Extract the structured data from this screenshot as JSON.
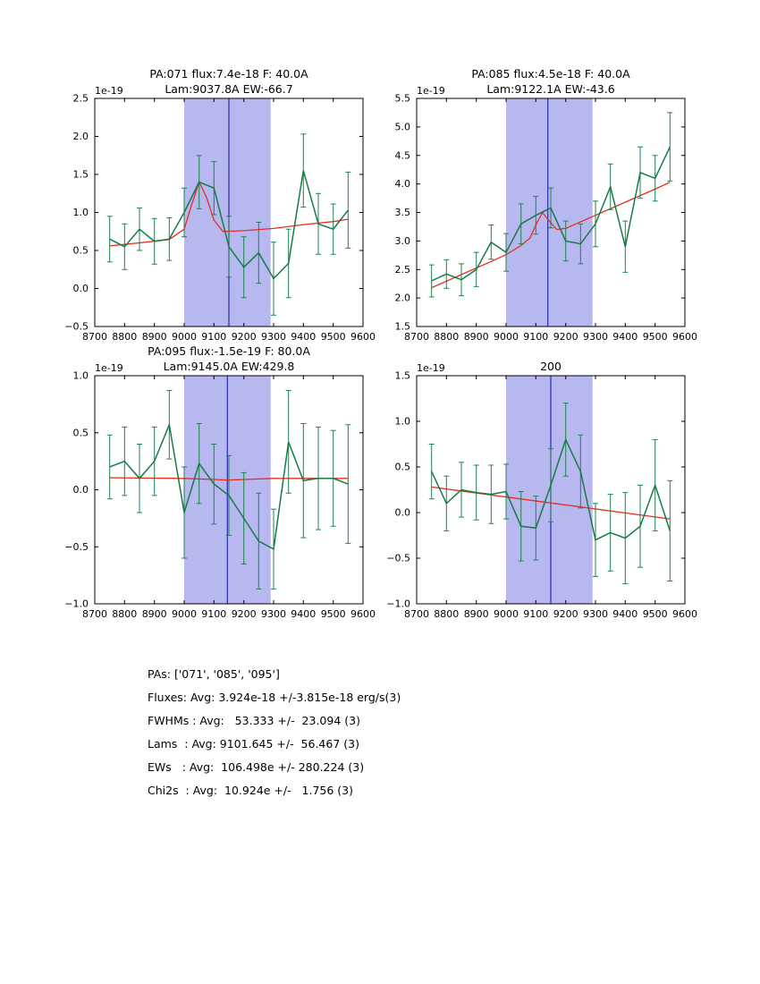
{
  "figure": {
    "background": "#ffffff",
    "colors": {
      "data_line": "#167a48",
      "error_bar": "#1f8150",
      "fit_line": "#e62e1e",
      "band": "#b8b8f0",
      "center_line": "#2929b0",
      "axis": "#000000",
      "text": "#000000"
    }
  },
  "chart_data": [
    {
      "type": "line",
      "title_lines": [
        "PA:071 flux:7.4e-18 F: 40.0A",
        "Lam:9037.8A EW:-66.7"
      ],
      "offset_label": "1e-19",
      "xlim": [
        8700,
        9600
      ],
      "ylim": [
        -0.5,
        2.5
      ],
      "xticks": [
        8700,
        8800,
        8900,
        9000,
        9100,
        9200,
        9300,
        9400,
        9500,
        9600
      ],
      "yticks": [
        -0.5,
        0.0,
        0.5,
        1.0,
        1.5,
        2.0,
        2.5
      ],
      "band": [
        9000,
        9290
      ],
      "vline": 9150,
      "grid": false,
      "x": [
        8750,
        8800,
        8850,
        8900,
        8950,
        9000,
        9050,
        9100,
        9150,
        9200,
        9250,
        9300,
        9350,
        9400,
        9450,
        9500,
        9550
      ],
      "y": [
        0.65,
        0.55,
        0.78,
        0.62,
        0.65,
        1.0,
        1.4,
        1.32,
        0.55,
        0.28,
        0.47,
        0.13,
        0.33,
        1.55,
        0.85,
        0.78,
        1.03
      ],
      "yerr": [
        0.3,
        0.3,
        0.28,
        0.3,
        0.28,
        0.32,
        0.35,
        0.35,
        0.4,
        0.4,
        0.4,
        0.48,
        0.45,
        0.48,
        0.4,
        0.33,
        0.5
      ],
      "fit": [
        [
          8750,
          0.56
        ],
        [
          8850,
          0.6
        ],
        [
          8950,
          0.645
        ],
        [
          9000,
          0.78
        ],
        [
          9025,
          1.1
        ],
        [
          9050,
          1.4
        ],
        [
          9075,
          1.2
        ],
        [
          9100,
          0.9
        ],
        [
          9130,
          0.75
        ],
        [
          9200,
          0.76
        ],
        [
          9300,
          0.79
        ],
        [
          9400,
          0.84
        ],
        [
          9500,
          0.88
        ],
        [
          9550,
          0.91
        ]
      ]
    },
    {
      "type": "line",
      "title_lines": [
        "PA:085 flux:4.5e-18 F: 40.0A",
        "Lam:9122.1A EW:-43.6"
      ],
      "offset_label": "1e-19",
      "xlim": [
        8700,
        9600
      ],
      "ylim": [
        1.5,
        5.5
      ],
      "xticks": [
        8700,
        8800,
        8900,
        9000,
        9100,
        9200,
        9300,
        9400,
        9500,
        9600
      ],
      "yticks": [
        1.5,
        2.0,
        2.5,
        3.0,
        3.5,
        4.0,
        4.5,
        5.0,
        5.5
      ],
      "band": [
        9000,
        9290
      ],
      "vline": 9140,
      "grid": false,
      "x": [
        8750,
        8800,
        8850,
        8900,
        8950,
        9000,
        9050,
        9100,
        9150,
        9200,
        9250,
        9300,
        9350,
        9400,
        9450,
        9500,
        9550
      ],
      "y": [
        2.3,
        2.42,
        2.32,
        2.5,
        2.98,
        2.8,
        3.3,
        3.45,
        3.58,
        3.0,
        2.95,
        3.3,
        3.95,
        2.9,
        4.2,
        4.1,
        4.65
      ],
      "yerr": [
        0.28,
        0.25,
        0.28,
        0.3,
        0.3,
        0.33,
        0.35,
        0.33,
        0.35,
        0.35,
        0.35,
        0.4,
        0.4,
        0.45,
        0.45,
        0.4,
        0.6
      ],
      "fit": [
        [
          8750,
          2.18
        ],
        [
          8850,
          2.41
        ],
        [
          8950,
          2.64
        ],
        [
          9000,
          2.76
        ],
        [
          9050,
          2.92
        ],
        [
          9080,
          3.05
        ],
        [
          9100,
          3.28
        ],
        [
          9122,
          3.5
        ],
        [
          9145,
          3.35
        ],
        [
          9170,
          3.2
        ],
        [
          9200,
          3.22
        ],
        [
          9300,
          3.45
        ],
        [
          9400,
          3.68
        ],
        [
          9500,
          3.91
        ],
        [
          9550,
          4.03
        ]
      ]
    },
    {
      "type": "line",
      "title_lines": [
        "PA:095 flux:-1.5e-19 F: 80.0A",
        "Lam:9145.0A EW:429.8"
      ],
      "offset_label": "1e-19",
      "xlim": [
        8700,
        9600
      ],
      "ylim": [
        -1.0,
        1.0
      ],
      "xticks": [
        8700,
        8800,
        8900,
        9000,
        9100,
        9200,
        9300,
        9400,
        9500,
        9600
      ],
      "yticks": [
        -1.0,
        -0.5,
        0.0,
        0.5,
        1.0
      ],
      "band": [
        9000,
        9290
      ],
      "vline": 9145,
      "grid": false,
      "x": [
        8750,
        8800,
        8850,
        8900,
        8950,
        9000,
        9050,
        9100,
        9150,
        9200,
        9250,
        9300,
        9350,
        9400,
        9450,
        9500,
        9550
      ],
      "y": [
        0.2,
        0.25,
        0.1,
        0.25,
        0.57,
        -0.2,
        0.23,
        0.05,
        -0.05,
        -0.25,
        -0.45,
        -0.52,
        0.42,
        0.08,
        0.1,
        0.1,
        0.05
      ],
      "yerr": [
        0.28,
        0.3,
        0.3,
        0.3,
        0.3,
        0.4,
        0.35,
        0.35,
        0.35,
        0.4,
        0.42,
        0.35,
        0.45,
        0.5,
        0.45,
        0.42,
        0.52
      ],
      "fit": [
        [
          8750,
          0.105
        ],
        [
          9000,
          0.1
        ],
        [
          9100,
          0.09
        ],
        [
          9145,
          0.085
        ],
        [
          9200,
          0.09
        ],
        [
          9300,
          0.1
        ],
        [
          9550,
          0.1
        ]
      ]
    },
    {
      "type": "line",
      "title_lines": [
        "200"
      ],
      "offset_label": "1e-19",
      "xlim": [
        8700,
        9600
      ],
      "ylim": [
        -1.0,
        1.5
      ],
      "xticks": [
        8700,
        8800,
        8900,
        9000,
        9100,
        9200,
        9300,
        9400,
        9500,
        9600
      ],
      "yticks": [
        -1.0,
        -0.5,
        0.0,
        0.5,
        1.0,
        1.5
      ],
      "band": [
        9000,
        9290
      ],
      "vline": 9150,
      "grid": false,
      "x": [
        8750,
        8800,
        8850,
        8900,
        8950,
        9000,
        9050,
        9100,
        9150,
        9200,
        9250,
        9300,
        9350,
        9400,
        9450,
        9500,
        9550
      ],
      "y": [
        0.45,
        0.1,
        0.25,
        0.22,
        0.2,
        0.23,
        -0.15,
        -0.17,
        0.3,
        0.8,
        0.45,
        -0.3,
        -0.22,
        -0.28,
        -0.15,
        0.3,
        -0.2
      ],
      "yerr": [
        0.3,
        0.3,
        0.3,
        0.3,
        0.32,
        0.3,
        0.38,
        0.35,
        0.4,
        0.4,
        0.4,
        0.4,
        0.42,
        0.5,
        0.45,
        0.5,
        0.55
      ],
      "fit": [
        [
          8750,
          0.28
        ],
        [
          9550,
          -0.07
        ]
      ]
    }
  ],
  "summary": {
    "lines": [
      "PAs: ['071', '085', '095']",
      "Fluxes: Avg: 3.924e-18 +/-3.815e-18 erg/s(3)",
      "FWHMs : Avg:   53.333 +/-  23.094 (3)",
      "Lams  : Avg: 9101.645 +/-  56.467 (3)",
      "EWs   : Avg:  106.498e +/- 280.224 (3)",
      "Chi2s  : Avg:  10.924e +/-   1.756 (3)"
    ]
  }
}
